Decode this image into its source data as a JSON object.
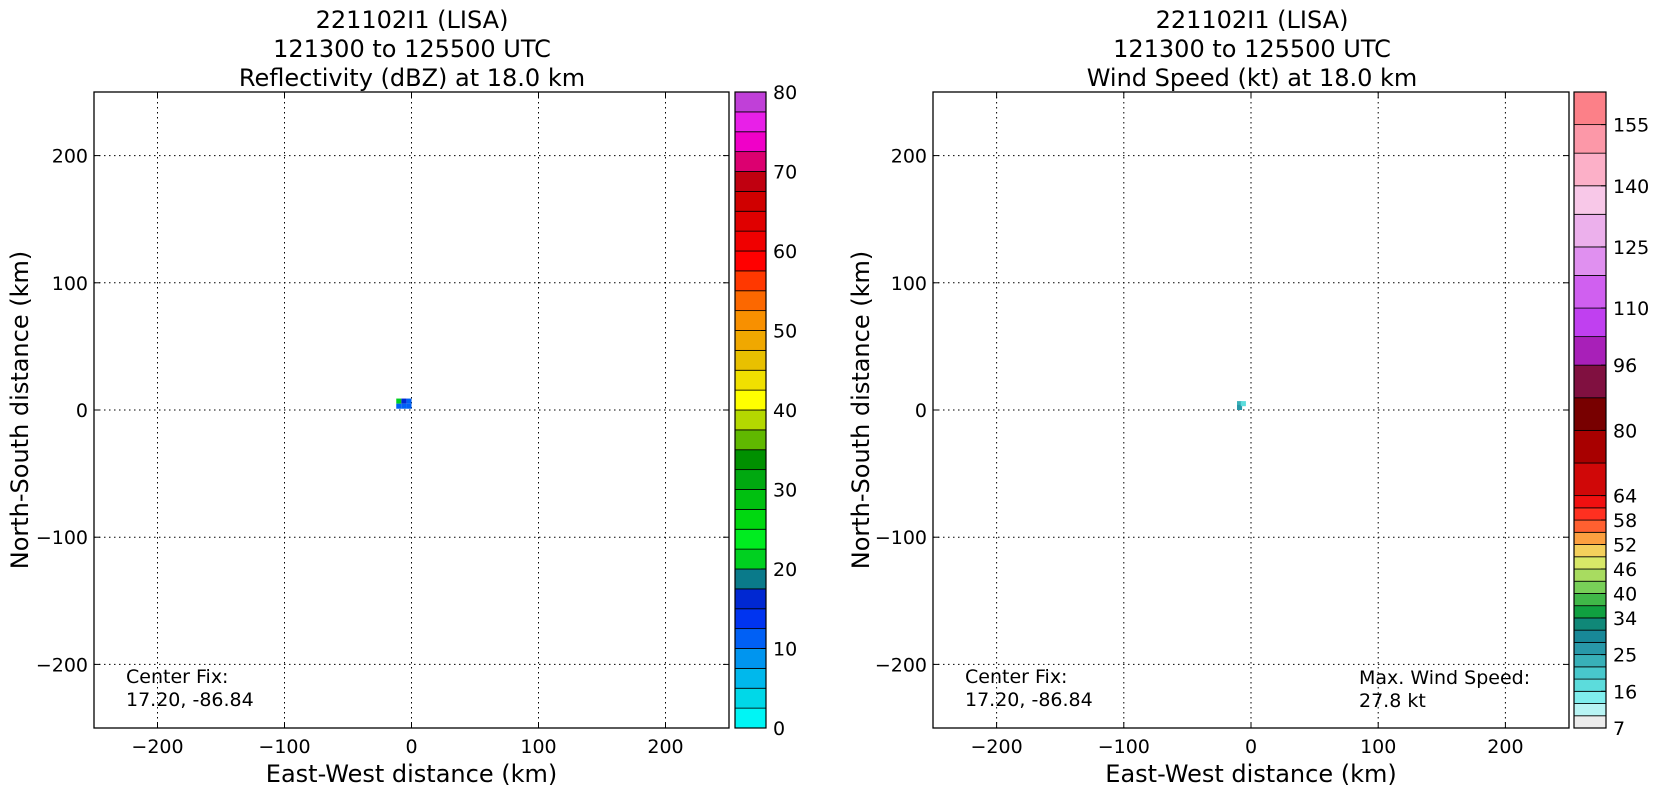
{
  "chart_data": [
    {
      "type": "heatmap",
      "title": [
        "221102I1 (LISA)",
        "121300 to 125500 UTC",
        "Reflectivity (dBZ) at 18.0 km"
      ],
      "xlabel": "East-West distance (km)",
      "ylabel": "North-South distance (km)",
      "xlim": [
        -250,
        250
      ],
      "ylim": [
        -250,
        250
      ],
      "xticks": [
        -200,
        -100,
        0,
        100,
        200
      ],
      "xtick_labels": [
        "−200",
        "−100",
        "0",
        "100",
        "200"
      ],
      "yticks": [
        -200,
        -100,
        0,
        100,
        200
      ],
      "ytick_labels": [
        "−200",
        "−100",
        "0",
        "100",
        "200"
      ],
      "grid": "dotted",
      "data_cells": [
        {
          "x": -10,
          "y": 7,
          "value": 22
        },
        {
          "x": -6,
          "y": 7,
          "value": 17
        },
        {
          "x": -2,
          "y": 7,
          "value": 12
        },
        {
          "x": -10,
          "y": 3,
          "value": 12
        },
        {
          "x": -6,
          "y": 3,
          "value": 12
        },
        {
          "x": -2,
          "y": 3,
          "value": 11
        }
      ],
      "annotations": [
        {
          "text": [
            "Center Fix:",
            "17.20, -86.84"
          ],
          "position": "bottom-left"
        }
      ],
      "colorbar": {
        "levels": [
          0,
          2.5,
          5,
          7.5,
          10,
          12.5,
          15,
          17.5,
          20,
          22.5,
          25,
          27.5,
          30,
          32.5,
          35,
          37.5,
          40,
          42.5,
          45,
          47.5,
          50,
          52.5,
          55,
          57.5,
          60,
          62.5,
          65,
          67.5,
          70,
          72.5,
          75,
          77.5,
          80
        ],
        "colors": [
          "#00f5f5",
          "#00d8e8",
          "#00b8ec",
          "#0095ef",
          "#0060f5",
          "#0034f0",
          "#0028d2",
          "#0a7a8a",
          "#00d020",
          "#00ec20",
          "#00d810",
          "#00c010",
          "#00a810",
          "#009000",
          "#60b800",
          "#b4d800",
          "#ffff00",
          "#f0e000",
          "#e8c000",
          "#f0a800",
          "#f89000",
          "#fc6800",
          "#ff3800",
          "#ff0000",
          "#f00000",
          "#e00000",
          "#d00000",
          "#c00010",
          "#dc0070",
          "#f000c8",
          "#e820e8",
          "#c040d8",
          "#a050c8",
          "#7040a0",
          "#402860",
          "#000000"
        ],
        "tick_values": [
          0,
          10,
          20,
          30,
          40,
          50,
          60,
          70,
          80
        ],
        "tick_labels": [
          "0",
          "10",
          "20",
          "30",
          "40",
          "50",
          "60",
          "70",
          "80"
        ]
      }
    },
    {
      "type": "heatmap",
      "title": [
        "221102I1 (LISA)",
        "121300 to 125500 UTC",
        "Wind Speed (kt) at 18.0 km"
      ],
      "xlabel": "East-West distance (km)",
      "ylabel": "North-South distance (km)",
      "xlim": [
        -250,
        250
      ],
      "ylim": [
        -250,
        250
      ],
      "xticks": [
        -200,
        -100,
        0,
        100,
        200
      ],
      "xtick_labels": [
        "−200",
        "−100",
        "0",
        "100",
        "200"
      ],
      "yticks": [
        -200,
        -100,
        0,
        100,
        200
      ],
      "ytick_labels": [
        "−200",
        "−100",
        "0",
        "100",
        "200"
      ],
      "grid": "dotted",
      "data_cells": [
        {
          "x": -9,
          "y": 5,
          "value": 24
        },
        {
          "x": -9,
          "y": 2,
          "value": 27
        },
        {
          "x": -6,
          "y": 5,
          "value": 18
        }
      ],
      "annotations": [
        {
          "text": [
            "Center Fix:",
            "17.20, -86.84"
          ],
          "position": "bottom-left"
        },
        {
          "text": [
            "Max. Wind Speed:",
            "27.8 kt"
          ],
          "position": "bottom-right"
        }
      ],
      "colorbar": {
        "levels": [
          7,
          10,
          13,
          16,
          19,
          22,
          25,
          28,
          31,
          34,
          37,
          40,
          43,
          46,
          49,
          52,
          55,
          58,
          61,
          64,
          72,
          80,
          88,
          96,
          103,
          110,
          118,
          125,
          133,
          140,
          148,
          155,
          163
        ],
        "colors": [
          "#ececec",
          "#b8f4f4",
          "#80eeee",
          "#5cdcdc",
          "#48c8cc",
          "#38b0b8",
          "#2898a8",
          "#188898",
          "#108878",
          "#10a040",
          "#40b848",
          "#78d058",
          "#a8dc60",
          "#d8e868",
          "#f4d05c",
          "#fca040",
          "#ff6030",
          "#ff3020",
          "#f01010",
          "#d00808",
          "#a80000",
          "#780000",
          "#801040",
          "#a820b8",
          "#c040f0",
          "#d060f0",
          "#e090f0",
          "#ecb0ec",
          "#f8c8e8",
          "#fcb0c8",
          "#fc98a8",
          "#fc8088",
          "#f86868",
          "#f05058",
          "#e04050",
          "#c83048",
          "#b02040",
          "#981840"
        ],
        "tick_values": [
          7,
          16,
          25,
          34,
          40,
          46,
          52,
          58,
          64,
          80,
          96,
          110,
          125,
          140,
          155
        ],
        "tick_labels": [
          "7",
          "16",
          "25",
          "34",
          "40",
          "46",
          "52",
          "58",
          "64",
          "80",
          "96",
          "110",
          "125",
          "140",
          "155"
        ]
      }
    }
  ]
}
